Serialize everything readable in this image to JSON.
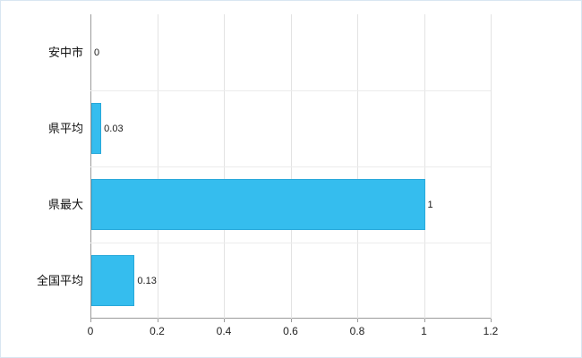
{
  "chart_data": {
    "type": "bar",
    "orientation": "horizontal",
    "title": "",
    "xlabel": "",
    "ylabel": "",
    "categories": [
      "安中市",
      "県平均",
      "県最大",
      "全国平均"
    ],
    "values": [
      0,
      0.03,
      1,
      0.13
    ],
    "value_labels": [
      "0",
      "0.03",
      "1",
      "0.13"
    ],
    "xlim": [
      0,
      1.2
    ],
    "x_ticks": [
      0,
      0.2,
      0.4,
      0.6,
      0.8,
      1,
      1.2
    ],
    "x_tick_labels": [
      "0",
      "0.2",
      "0.4",
      "0.6",
      "0.8",
      "1",
      "1.2"
    ],
    "grid": true,
    "legend": "none",
    "bar_color": "#35bdee",
    "bar_border_color": "#29a9da",
    "axis_color": "#9b9b9b",
    "grid_color": "#e3e3e3",
    "background_color": "#ffffff"
  }
}
